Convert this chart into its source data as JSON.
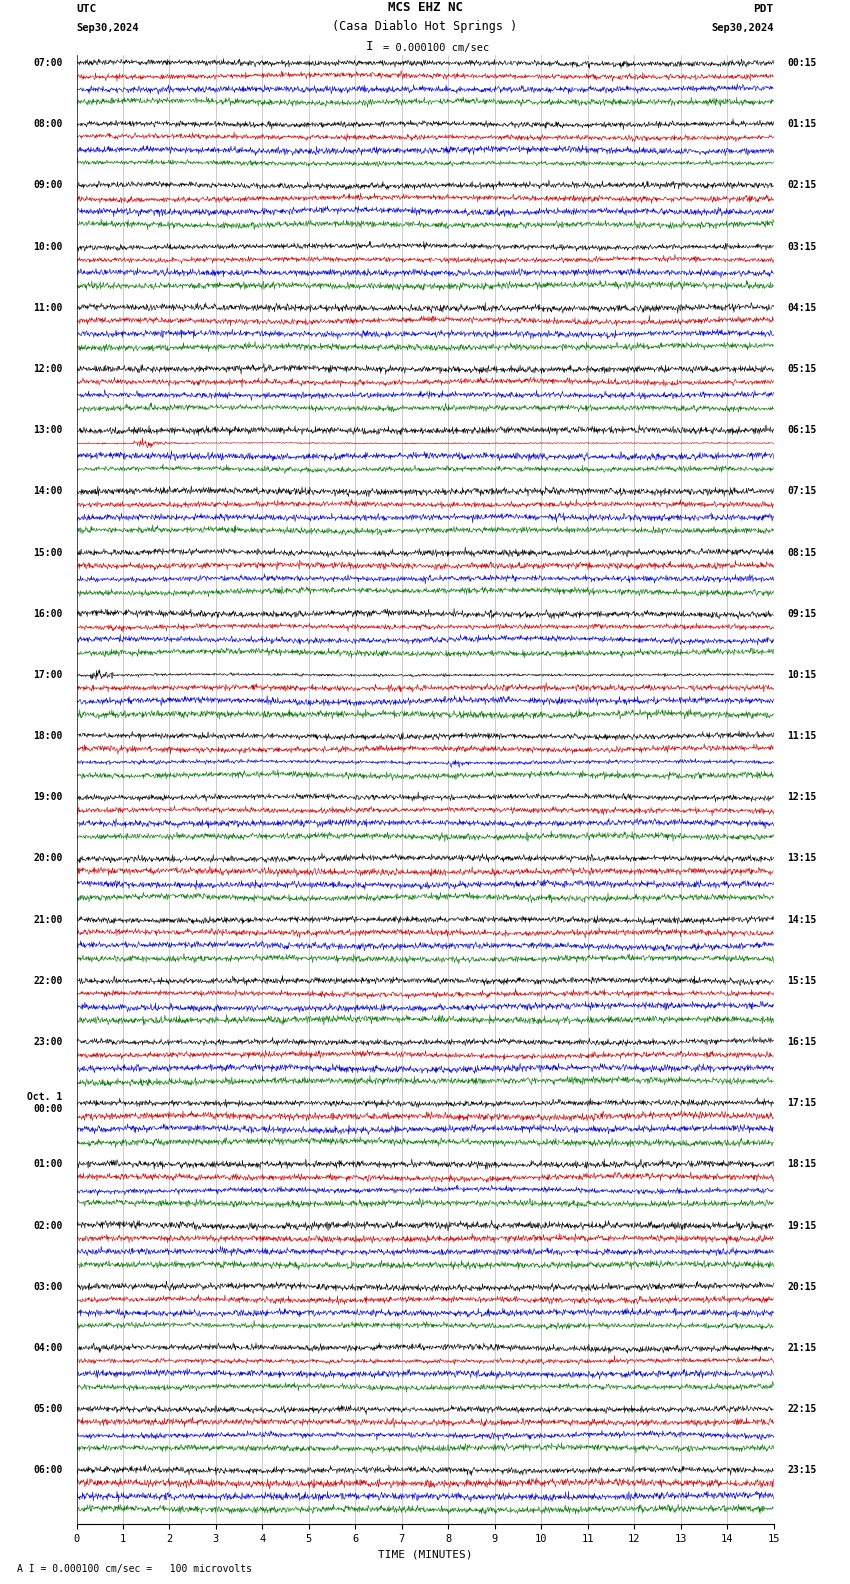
{
  "title_line1": "MCS EHZ NC",
  "title_line2": "(Casa Diablo Hot Springs )",
  "scale_text": "= 0.000100 cm/sec",
  "footer_text": "= 0.000100 cm/sec =   100 microvolts",
  "utc_label": "UTC",
  "pdt_label": "PDT",
  "utc_date": "Sep30,2024",
  "pdt_date": "Sep30,2024",
  "xlabel": "TIME (MINUTES)",
  "bg_color": "#ffffff",
  "trace_colors": [
    "#000000",
    "#cc0000",
    "#0000cc",
    "#007700"
  ],
  "left_times": [
    "07:00",
    "08:00",
    "09:00",
    "10:00",
    "11:00",
    "12:00",
    "13:00",
    "14:00",
    "15:00",
    "16:00",
    "17:00",
    "18:00",
    "19:00",
    "20:00",
    "21:00",
    "22:00",
    "23:00",
    "Oct. 1\n00:00",
    "01:00",
    "02:00",
    "03:00",
    "04:00",
    "05:00",
    "06:00"
  ],
  "right_times": [
    "00:15",
    "01:15",
    "02:15",
    "03:15",
    "04:15",
    "05:15",
    "06:15",
    "07:15",
    "08:15",
    "09:15",
    "10:15",
    "11:15",
    "12:15",
    "13:15",
    "14:15",
    "15:15",
    "16:15",
    "17:15",
    "18:15",
    "19:15",
    "20:15",
    "21:15",
    "22:15",
    "23:15"
  ],
  "xticks": [
    0,
    1,
    2,
    3,
    4,
    5,
    6,
    7,
    8,
    9,
    10,
    11,
    12,
    13,
    14,
    15
  ],
  "xlim": [
    0,
    15
  ],
  "n_hours": 24,
  "traces_per_hour": 4,
  "noise_scales": [
    0.3,
    0.25,
    0.35,
    0.2
  ],
  "earthquake_hour": 6,
  "earthquake_trace": 1,
  "earthquake_minute": 1.5,
  "earthquake_amplitude": 8.0,
  "red_spike_hour": 10,
  "red_spike_trace": 0,
  "red_spike_minute": 0.3,
  "red_spike_amplitude": 3.5,
  "blue_spike_hour": 11,
  "blue_spike_trace": 2,
  "blue_spike_minute": 8.0,
  "blue_spike_amplitude": 2.0
}
